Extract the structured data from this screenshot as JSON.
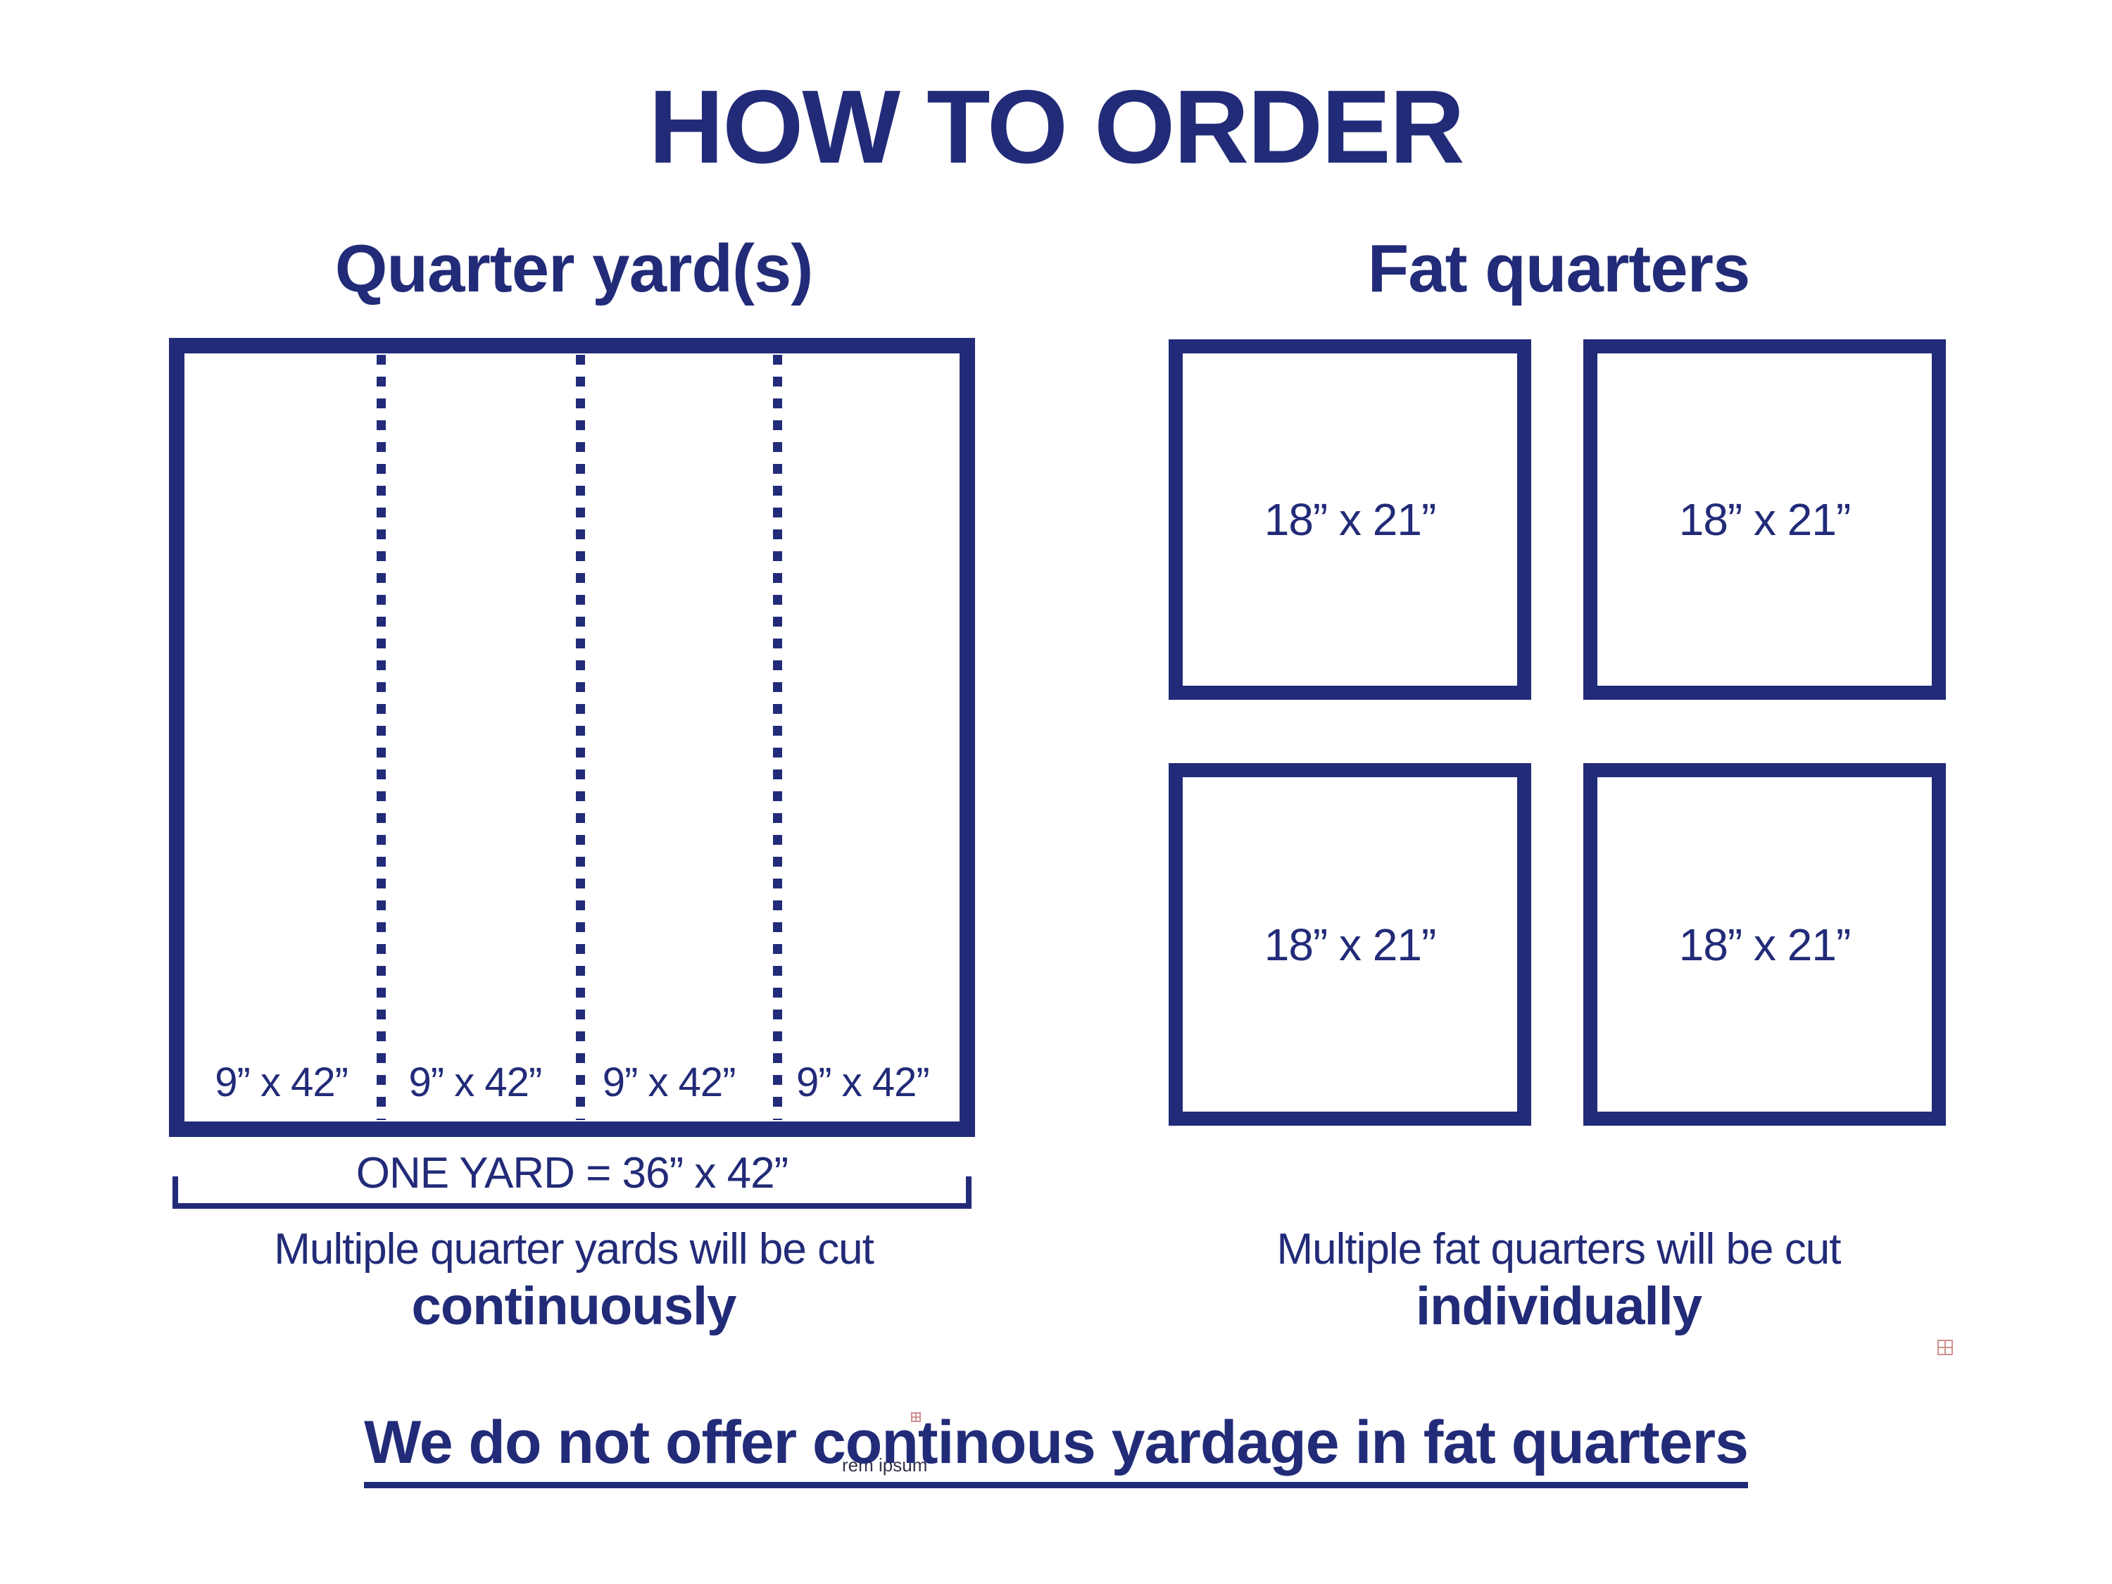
{
  "theme": {
    "navy": "#222b78",
    "mark_red": "#c5807c",
    "watermark_color": "#33334a",
    "background": "#ffffff"
  },
  "page": {
    "title": "HOW TO ORDER"
  },
  "quarter_section": {
    "heading": "Quarter yard(s)",
    "strip_labels": [
      "9” x 42”",
      "9” x 42”",
      "9” x 42”",
      "9” x 42”"
    ],
    "one_yard_label": "ONE YARD = 36” x 42”",
    "caption_line1": "Multiple quarter yards will be cut",
    "caption_line2": "continuously"
  },
  "fat_section": {
    "heading": "Fat quarters",
    "square_labels": [
      "18” x 21”",
      "18” x 21”",
      "18” x 21”",
      "18” x 21”"
    ],
    "caption_line1": "Multiple fat quarters will be cut",
    "caption_line2": "individually"
  },
  "footer": {
    "note": "We do not offer continous yardage in fat quarters"
  },
  "artifacts": {
    "watermark_text": "rem ipsum"
  }
}
